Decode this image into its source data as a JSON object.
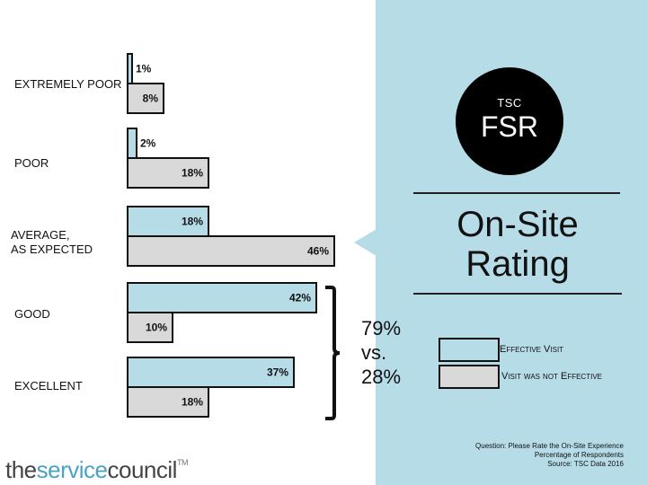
{
  "chart_data": {
    "type": "bar",
    "orientation": "horizontal",
    "categories": [
      "EXTREMELY POOR",
      "POOR",
      "AVERAGE, AS EXPECTED",
      "GOOD",
      "EXCELLENT"
    ],
    "series": [
      {
        "name": "Effective Visit",
        "values": [
          1,
          2,
          18,
          42,
          37
        ],
        "color": "#b6dce8"
      },
      {
        "name": "Visit was not Effective",
        "values": [
          8,
          18,
          46,
          10,
          18
        ],
        "color": "#d9d9d9"
      }
    ],
    "value_suffix": "%",
    "xlim": [
      0,
      50
    ],
    "grid": false,
    "legend_position": "right"
  },
  "badge": {
    "top": "TSC",
    "main": "FSR"
  },
  "title": {
    "line1": "On-Site",
    "line2": "Rating"
  },
  "comparison": {
    "line1": "79%",
    "line2": "vs.",
    "line3": "28%"
  },
  "legend": {
    "effective": "Effective Visit",
    "not_effective": "Visit was not Effective"
  },
  "footnote": {
    "line1": "Question: Please Rate the On-Site Experience",
    "line2": "Percentage of Respondents",
    "line3": "Source: TSC Data 2016"
  },
  "logo": {
    "part1": "the",
    "part2": "service",
    "part3": "council",
    "tm": "TM"
  },
  "colors": {
    "panel": "#b6dce8",
    "effective": "#b6dce8",
    "not_effective": "#d9d9d9",
    "logo_accent": "#4aa3c4"
  }
}
